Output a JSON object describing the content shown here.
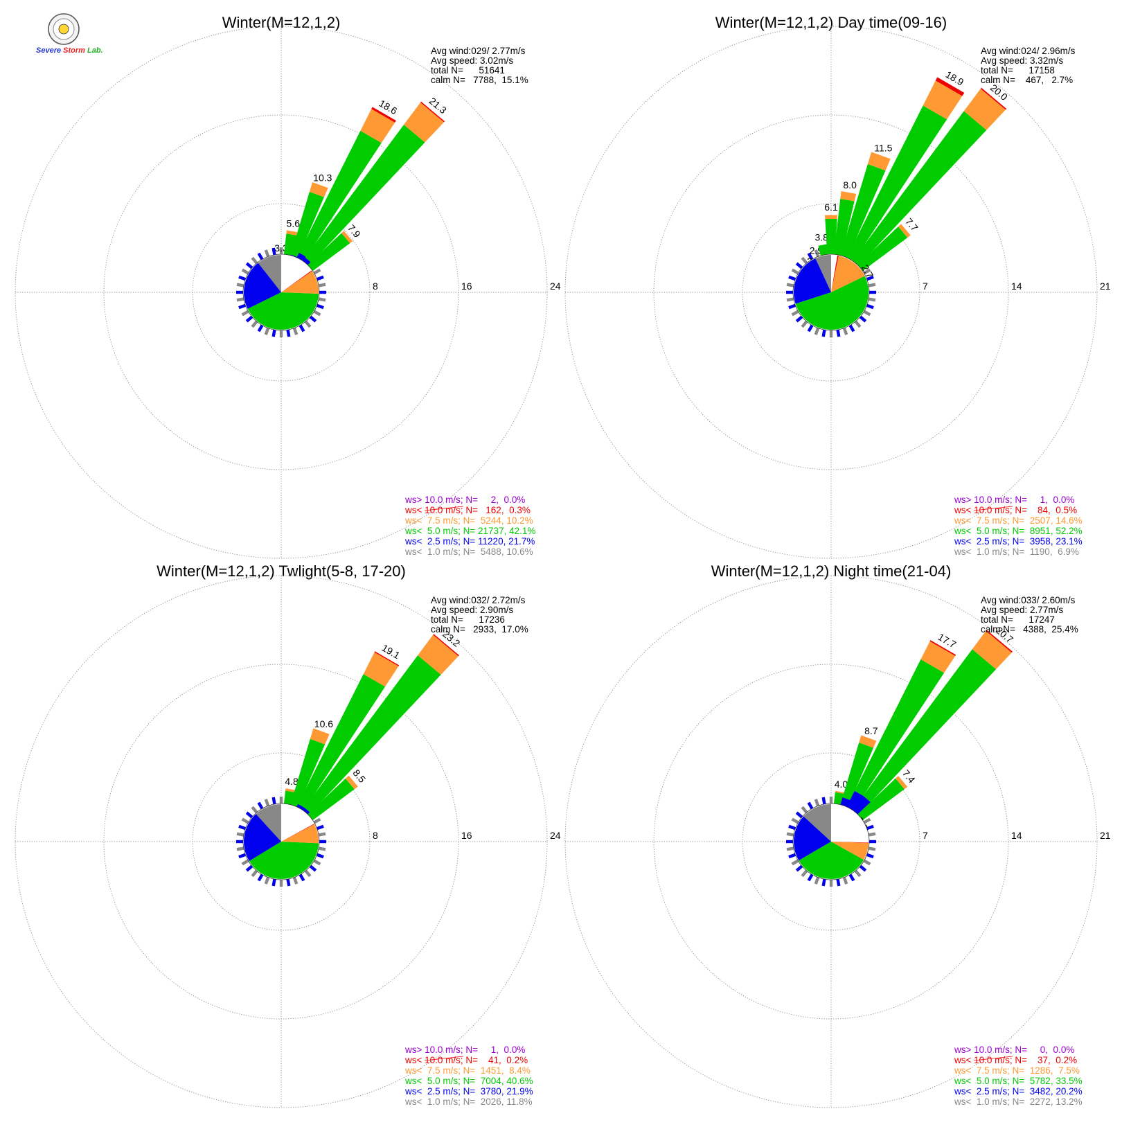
{
  "logo": {
    "text": "Severe Storm Lab.",
    "colors": {
      "severe": "#2233cc",
      "storm": "#ee2222",
      "lab": "#22aa22"
    }
  },
  "chart_data": [
    {
      "type": "wind-rose",
      "title": "Winter(M=12,1,2)",
      "ring_max": 24,
      "ring_labels": [
        "8",
        "16",
        "24"
      ],
      "stats": [
        "Avg wind:029/ 2.77m/s",
        "Avg speed: 3.02m/s",
        "total N=      51641",
        "calm N=   7788,  15.1%"
      ],
      "legend": [
        {
          "text": "ws> 10.0 m/s; N=     2,  0.0%",
          "color": "#9900cc"
        },
        {
          "text": "ws< 10.0 m/s; N=   162,  0.3%",
          "color": "#ee0000"
        },
        {
          "text": "ws<  7.5 m/s; N=  5244, 10.2%",
          "color": "#ff9933"
        },
        {
          "text": "ws<  5.0 m/s; N= 21737, 42.1%",
          "color": "#00cc00"
        },
        {
          "text": "ws<  2.5 m/s; N= 11220, 21.7%",
          "color": "#0000ee"
        },
        {
          "text": "ws<  1.0 m/s; N=  5488, 10.6%",
          "color": "#888888"
        }
      ],
      "directions_deg": [
        0,
        10,
        20,
        30,
        40,
        50,
        60
      ],
      "bars": [
        {
          "dir": 0,
          "total": 3.3,
          "label": "3.3",
          "segments": [
            1.4,
            1.0,
            0.9
          ]
        },
        {
          "dir": 10,
          "total": 5.6,
          "label": "5.6",
          "segments": [
            1.4,
            1.4,
            2.5,
            0.3
          ]
        },
        {
          "dir": 20,
          "total": 10.3,
          "label": "10.3",
          "segments": [
            1.3,
            2.2,
            5.9,
            0.9
          ]
        },
        {
          "dir": 30,
          "total": 18.6,
          "label": "18.6",
          "segments": [
            1.3,
            2.6,
            12.3,
            2.2,
            0.2
          ]
        },
        {
          "dir": 40,
          "total": 21.3,
          "label": "21.3",
          "segments": [
            1.3,
            2.5,
            14.9,
            2.5,
            0.1
          ]
        },
        {
          "dir": 50,
          "total": 7.9,
          "label": "7.9",
          "segments": [
            1.2,
            1.5,
            4.9,
            0.3
          ]
        },
        {
          "dir": 60,
          "total": 2.4,
          "label": "2.4",
          "segments": [
            1.1,
            0.5,
            0.8
          ]
        }
      ],
      "pie": [
        10.6,
        21.7,
        42.1,
        10.2,
        0.3,
        0.0
      ]
    },
    {
      "type": "wind-rose",
      "title": "Winter(M=12,1,2) Day time(09-16)",
      "ring_max": 21,
      "ring_labels": [
        "7",
        "14",
        "21"
      ],
      "stats": [
        "Avg wind:024/ 2.96m/s",
        "Avg speed: 3.32m/s",
        "total N=      17158",
        "calm N=    467,   2.7%"
      ],
      "legend": [
        {
          "text": "ws> 10.0 m/s; N=     1,  0.0%",
          "color": "#9900cc"
        },
        {
          "text": "ws< 10.0 m/s; N=    84,  0.5%",
          "color": "#ee0000"
        },
        {
          "text": "ws<  7.5 m/s; N=  2507, 14.6%",
          "color": "#ff9933"
        },
        {
          "text": "ws<  5.0 m/s; N=  8951, 52.2%",
          "color": "#00cc00"
        },
        {
          "text": "ws<  2.5 m/s; N=  3958, 23.1%",
          "color": "#0000ee"
        },
        {
          "text": "ws<  1.0 m/s; N=  1190,  6.9%",
          "color": "#888888"
        }
      ],
      "bars": [
        {
          "dir": -30,
          "total": 2.2,
          "label": "2.2",
          "segments": [
            1.0,
            0.6,
            0.6
          ]
        },
        {
          "dir": -20,
          "total": 2.9,
          "label": "2.9",
          "segments": [
            1.0,
            0.8,
            1.1
          ]
        },
        {
          "dir": -10,
          "total": 3.8,
          "label": "3.8",
          "segments": [
            1.0,
            1.0,
            1.8
          ]
        },
        {
          "dir": 0,
          "total": 6.1,
          "label": "6.1",
          "segments": [
            1.0,
            1.2,
            3.6,
            0.3
          ]
        },
        {
          "dir": 10,
          "total": 8.0,
          "label": "8.0",
          "segments": [
            1.0,
            1.3,
            5.1,
            0.6
          ]
        },
        {
          "dir": 20,
          "total": 11.5,
          "label": "11.5",
          "segments": [
            1.0,
            1.5,
            8.0,
            1.0
          ]
        },
        {
          "dir": 30,
          "total": 18.9,
          "label": "18.9",
          "segments": [
            1.0,
            1.7,
            13.7,
            2.2,
            0.3
          ]
        },
        {
          "dir": 40,
          "total": 20.0,
          "label": "20.0",
          "segments": [
            1.0,
            1.7,
            15.0,
            2.2,
            0.1
          ]
        },
        {
          "dir": 50,
          "total": 7.7,
          "label": "7.7",
          "segments": [
            1.0,
            1.2,
            5.2,
            0.3
          ]
        },
        {
          "dir": 60,
          "total": 2.7,
          "label": "2.7",
          "segments": [
            1.0,
            0.5,
            1.0,
            0.2
          ]
        }
      ],
      "pie": [
        6.9,
        23.1,
        52.2,
        14.6,
        0.5,
        0.0
      ]
    },
    {
      "type": "wind-rose",
      "title": "Winter(M=12,1,2) Twlight(5-8, 17-20)",
      "ring_max": 24,
      "ring_labels": [
        "8",
        "16",
        "24"
      ],
      "stats": [
        "Avg wind:032/ 2.72m/s",
        "Avg speed: 2.90m/s",
        "total N=      17236",
        "calm N=   2933,  17.0%"
      ],
      "legend": [
        {
          "text": "ws> 10.0 m/s; N=     1,  0.0%",
          "color": "#9900cc"
        },
        {
          "text": "ws< 10.0 m/s; N=    41,  0.2%",
          "color": "#ee0000"
        },
        {
          "text": "ws<  7.5 m/s; N=  1451,  8.4%",
          "color": "#ff9933"
        },
        {
          "text": "ws<  5.0 m/s; N=  7004, 40.6%",
          "color": "#00cc00"
        },
        {
          "text": "ws<  2.5 m/s; N=  3780, 21.9%",
          "color": "#0000ee"
        },
        {
          "text": "ws<  1.0 m/s; N=  2026, 11.8%",
          "color": "#888888"
        }
      ],
      "bars": [
        {
          "dir": 0,
          "total": 2.2,
          "label": "2.2",
          "segments": [
            1.2,
            0.6,
            0.4
          ]
        },
        {
          "dir": 10,
          "total": 4.8,
          "label": "4.8",
          "segments": [
            1.2,
            1.3,
            2.1,
            0.2
          ]
        },
        {
          "dir": 20,
          "total": 10.6,
          "label": "10.6",
          "segments": [
            1.2,
            2.0,
            6.4,
            1.0
          ]
        },
        {
          "dir": 30,
          "total": 19.1,
          "label": "19.1",
          "segments": [
            1.2,
            2.5,
            13.1,
            2.2,
            0.1
          ]
        },
        {
          "dir": 40,
          "total": 23.2,
          "label": "23.2",
          "segments": [
            1.2,
            2.5,
            17.1,
            2.3,
            0.1
          ]
        },
        {
          "dir": 50,
          "total": 8.5,
          "label": "8.5",
          "segments": [
            1.1,
            1.4,
            5.6,
            0.4
          ]
        },
        {
          "dir": 60,
          "total": 2.4,
          "label": "2.4",
          "segments": [
            1.0,
            0.5,
            0.9
          ]
        }
      ],
      "pie": [
        11.8,
        21.9,
        40.6,
        8.4,
        0.2,
        0.0
      ]
    },
    {
      "type": "wind-rose",
      "title": "Winter(M=12,1,2) Night time(21-04)",
      "ring_max": 21,
      "ring_labels": [
        "7",
        "14",
        "21"
      ],
      "stats": [
        "Avg wind:033/ 2.60m/s",
        "Avg speed: 2.77m/s",
        "total N=      17247",
        "calm N=   4388,  25.4%"
      ],
      "legend": [
        {
          "text": "ws> 10.0 m/s; N=     0,  0.0%",
          "color": "#9900cc"
        },
        {
          "text": "ws< 10.0 m/s; N=    37,  0.2%",
          "color": "#ee0000"
        },
        {
          "text": "ws<  7.5 m/s; N=  1286,  7.5%",
          "color": "#ff9933"
        },
        {
          "text": "ws<  5.0 m/s; N=  5782, 33.5%",
          "color": "#00cc00"
        },
        {
          "text": "ws<  2.5 m/s; N=  3482, 20.2%",
          "color": "#0000ee"
        },
        {
          "text": "ws<  1.0 m/s; N=  2272, 13.2%",
          "color": "#888888"
        }
      ],
      "bars": [
        {
          "dir": 10,
          "total": 4.0,
          "label": "4.0",
          "segments": [
            1.4,
            1.3,
            1.2,
            0.1
          ]
        },
        {
          "dir": 20,
          "total": 8.7,
          "label": "8.7",
          "segments": [
            1.4,
            2.2,
            4.5,
            0.6
          ]
        },
        {
          "dir": 30,
          "total": 17.7,
          "label": "17.7",
          "segments": [
            1.4,
            3.0,
            11.6,
            1.6,
            0.1
          ]
        },
        {
          "dir": 40,
          "total": 20.7,
          "label": "20.7",
          "segments": [
            1.4,
            3.0,
            14.4,
            1.8,
            0.1
          ]
        },
        {
          "dir": 50,
          "total": 7.4,
          "label": "7.4",
          "segments": [
            1.3,
            1.6,
            4.2,
            0.3
          ]
        },
        {
          "dir": 60,
          "total": 2.2,
          "label": "2.2",
          "segments": [
            1.1,
            0.5,
            0.6
          ]
        }
      ],
      "pie": [
        13.2,
        20.2,
        33.5,
        7.5,
        0.2,
        0.0
      ]
    }
  ],
  "colors": {
    "calm": "#888888",
    "lt25": "#0000ee",
    "lt50": "#00cc00",
    "lt75": "#ff9933",
    "lt100": "#ee0000",
    "gt100": "#9900cc"
  }
}
